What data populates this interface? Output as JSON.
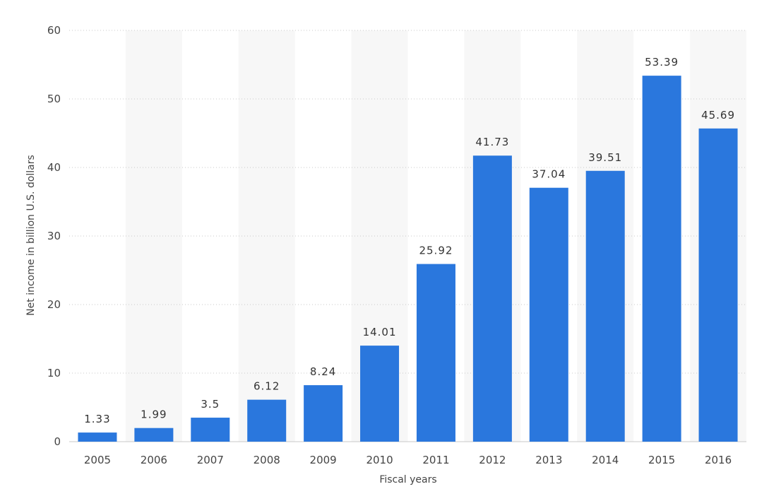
{
  "colors": {
    "bar": "#2a77dd",
    "band": "#f7f7f7",
    "grid": "#c8c8c8"
  },
  "chart_data": {
    "type": "bar",
    "categories": [
      "2005",
      "2006",
      "2007",
      "2008",
      "2009",
      "2010",
      "2011",
      "2012",
      "2013",
      "2014",
      "2015",
      "2016"
    ],
    "values": [
      1.33,
      1.99,
      3.5,
      6.12,
      8.24,
      14.01,
      25.92,
      41.73,
      37.04,
      39.51,
      53.39,
      45.69
    ],
    "data_labels": [
      "1.33",
      "1.99",
      "3.5",
      "6.12",
      "8.24",
      "14.01",
      "25.92",
      "41.73",
      "37.04",
      "39.51",
      "53.39",
      "45.69"
    ],
    "xlabel": "Fiscal years",
    "ylabel": "Net income in billion U.S. dollars",
    "ylim": [
      0,
      60
    ],
    "yticks": [
      0,
      10,
      20,
      30,
      40,
      50,
      60
    ],
    "grid": true,
    "alternating_bands": true
  }
}
